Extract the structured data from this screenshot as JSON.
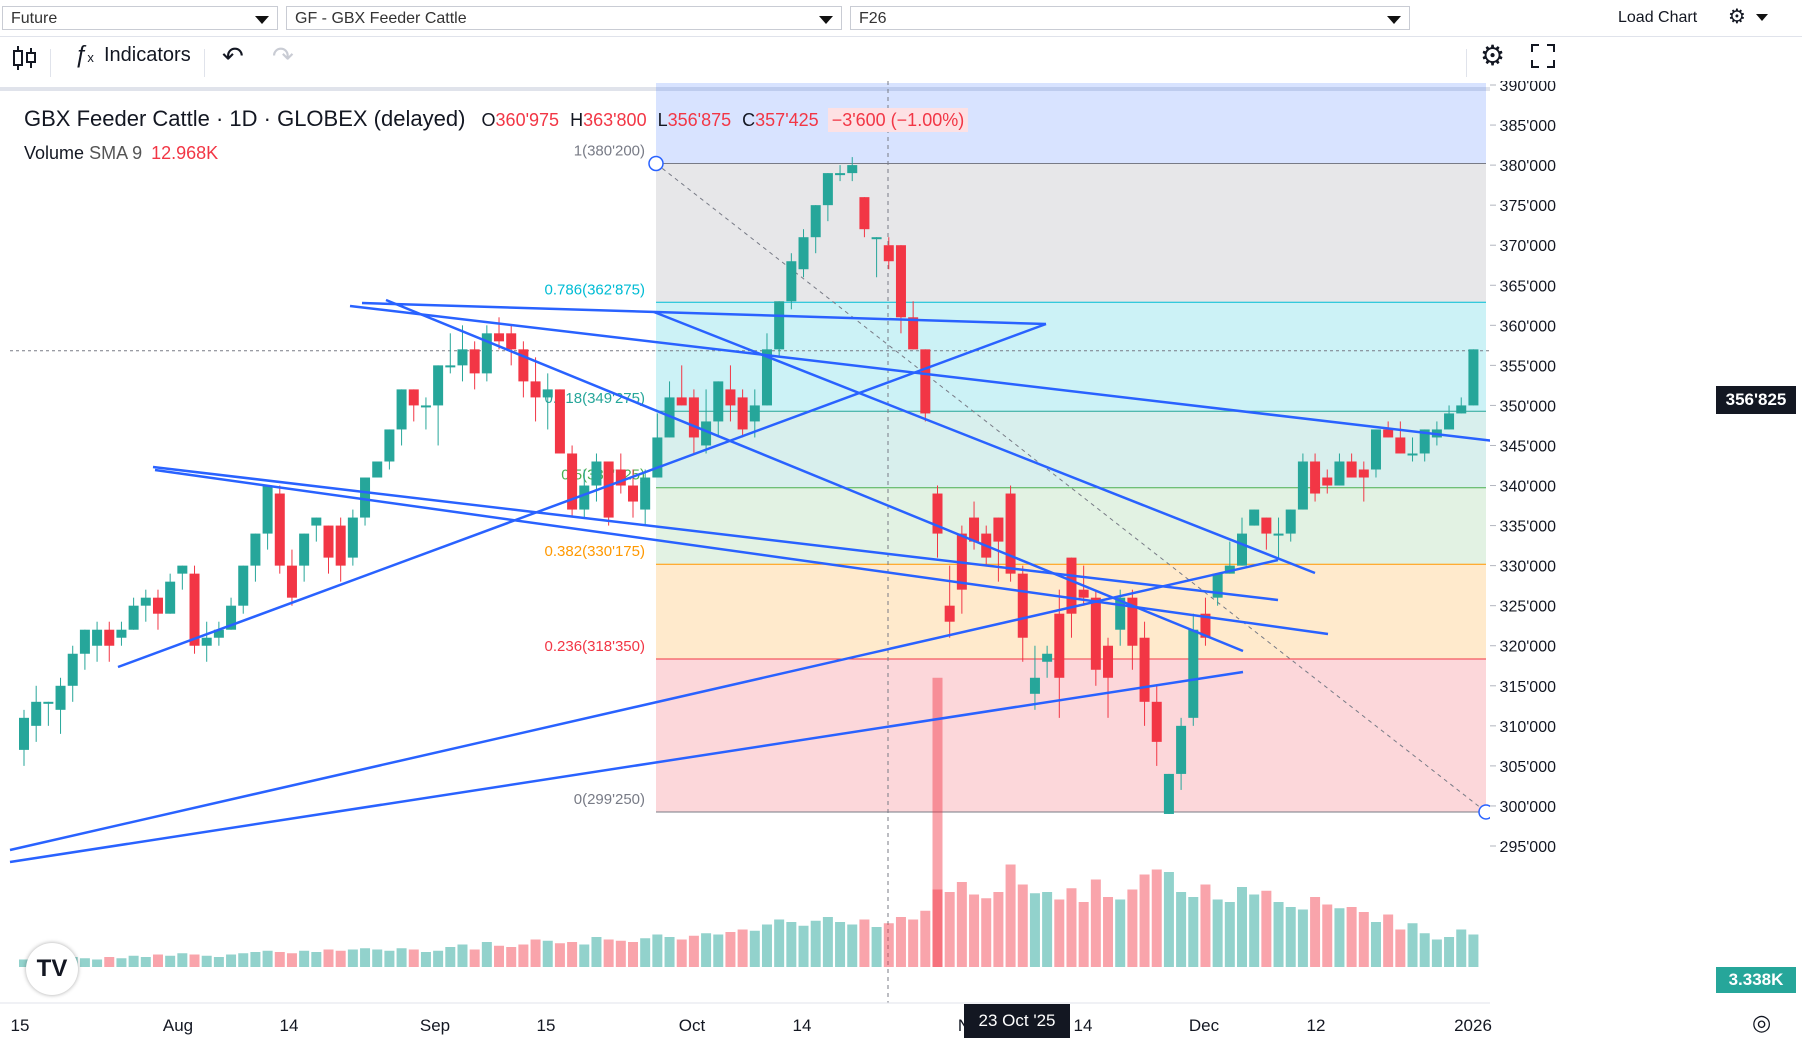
{
  "topbar": {
    "type_select": "Future",
    "symbol_select": "GF - GBX Feeder Cattle",
    "contract_select": "F26",
    "load_chart": "Load Chart"
  },
  "toolbar": {
    "indicators_label": "Indicators"
  },
  "legend": {
    "title": "GBX Feeder Cattle · 1D · GLOBEX (delayed)",
    "o_label": "O",
    "o": "360'975",
    "h_label": "H",
    "h": "363'800",
    "l_label": "L",
    "l": "356'875",
    "c_label": "C",
    "c": "357'425",
    "change": "−3'600 (−1.00%)"
  },
  "volume": {
    "label": "Volume",
    "sma": "SMA 9",
    "value": "12.968K"
  },
  "last_price": "356'825",
  "volume_tag": "3.338K",
  "crosshair_date": "23 Oct '25",
  "colors": {
    "up": "#26a69a",
    "down": "#f23645",
    "lines": "#2962ff"
  },
  "chart_data": {
    "type": "candlestick",
    "y_axis_ticks": [
      "390'000",
      "385'000",
      "380'000",
      "375'000",
      "370'000",
      "365'000",
      "360'000",
      "355'000",
      "350'000",
      "345'000",
      "340'000",
      "335'000",
      "330'000",
      "325'000",
      "320'000",
      "315'000",
      "310'000",
      "305'000",
      "300'000",
      "295'000"
    ],
    "x_axis_ticks": [
      "15",
      "Aug",
      "14",
      "Sep",
      "15",
      "Oct",
      "14",
      "Nov",
      "14",
      "Dec",
      "12",
      "2026"
    ],
    "fib_levels": [
      {
        "label": "1(380'200)",
        "price": 380.2,
        "color": "#787b86"
      },
      {
        "label": "0.786(362'875)",
        "price": 362.875,
        "color": "#00bcd4"
      },
      {
        "label": "0.618(349'275)",
        "price": 349.275,
        "color": "#26a69a"
      },
      {
        "label": "0.5(339'725)",
        "price": 339.725,
        "color": "#4caf50"
      },
      {
        "label": "0.382(330'175)",
        "price": 330.175,
        "color": "#ff9800"
      },
      {
        "label": "0.236(318'350)",
        "price": 318.35,
        "color": "#f23645"
      },
      {
        "label": "0(299'250)",
        "price": 299.25,
        "color": "#787b86"
      }
    ],
    "candles": [
      [
        307,
        311,
        305,
        312
      ],
      [
        310,
        313,
        308,
        315
      ],
      [
        313,
        313,
        310,
        313
      ],
      [
        312,
        315,
        309,
        316
      ],
      [
        315,
        319,
        313,
        320
      ],
      [
        319,
        322,
        317,
        322
      ],
      [
        320,
        322,
        318,
        323
      ],
      [
        322,
        320,
        318,
        323
      ],
      [
        321,
        322,
        320,
        323
      ],
      [
        322,
        325,
        322,
        326
      ],
      [
        325,
        326,
        323,
        327
      ],
      [
        326,
        324,
        322,
        327
      ],
      [
        324,
        328,
        324,
        329
      ],
      [
        329,
        330,
        327,
        330
      ],
      [
        329,
        320,
        319,
        330
      ],
      [
        320,
        321,
        318,
        323
      ],
      [
        321,
        322,
        320,
        323
      ],
      [
        322,
        325,
        322,
        326
      ],
      [
        325,
        330,
        324,
        330
      ],
      [
        330,
        334,
        328,
        334
      ],
      [
        334,
        340,
        332,
        340
      ],
      [
        339,
        330,
        329,
        340
      ],
      [
        330,
        326,
        325,
        332
      ],
      [
        330,
        334,
        328,
        334
      ],
      [
        335,
        336,
        333,
        336
      ],
      [
        335,
        331,
        329,
        335
      ],
      [
        335,
        330,
        328,
        336
      ],
      [
        331,
        336,
        330,
        337
      ],
      [
        336,
        341,
        335,
        341
      ],
      [
        341,
        343,
        341,
        343
      ],
      [
        343,
        347,
        342,
        347
      ],
      [
        347,
        352,
        345,
        352
      ],
      [
        352,
        350,
        348,
        352
      ],
      [
        350,
        350,
        347,
        351
      ],
      [
        350,
        355,
        345,
        355
      ],
      [
        355,
        355,
        354,
        359
      ],
      [
        355,
        357,
        353,
        360
      ],
      [
        357,
        354,
        352,
        358
      ],
      [
        354,
        359,
        353,
        360
      ],
      [
        359,
        358,
        357,
        361
      ],
      [
        359,
        357,
        355,
        360
      ],
      [
        357,
        353,
        351,
        358
      ],
      [
        353,
        351,
        348,
        356
      ],
      [
        351,
        352,
        347,
        354
      ],
      [
        352,
        344,
        344,
        352
      ],
      [
        344,
        337,
        336,
        345
      ],
      [
        337,
        340,
        336,
        342
      ],
      [
        340,
        343,
        338,
        344
      ],
      [
        343,
        336,
        335,
        343
      ],
      [
        342,
        340,
        339,
        344
      ],
      [
        340,
        338,
        336,
        342
      ],
      [
        337,
        341,
        335,
        342
      ],
      [
        341,
        346,
        341,
        349
      ],
      [
        346,
        351,
        346,
        353
      ],
      [
        351,
        350,
        350,
        355
      ],
      [
        351,
        346,
        344,
        352
      ],
      [
        345,
        348,
        344,
        352
      ],
      [
        348,
        353,
        346,
        353
      ],
      [
        352,
        350,
        348,
        355
      ],
      [
        351,
        347,
        346,
        352
      ],
      [
        348,
        350,
        346,
        352
      ],
      [
        350,
        357,
        350,
        359
      ],
      [
        357,
        363,
        356,
        363
      ],
      [
        363,
        368,
        362,
        369
      ],
      [
        367,
        371,
        366,
        372
      ],
      [
        371,
        375,
        369,
        375
      ],
      [
        375,
        379,
        373,
        379
      ],
      [
        379,
        379,
        378,
        380
      ],
      [
        379,
        380,
        378,
        381
      ],
      [
        376,
        372,
        371,
        376
      ],
      [
        371,
        371,
        366,
        371
      ],
      [
        370,
        368,
        367,
        371
      ],
      [
        370,
        361,
        359,
        370
      ],
      [
        361,
        357,
        357,
        363
      ],
      [
        357,
        349,
        348,
        357
      ],
      [
        339,
        334,
        331,
        340
      ],
      [
        325,
        323,
        321,
        330
      ],
      [
        334,
        327,
        324,
        335
      ],
      [
        336,
        333,
        332,
        338
      ],
      [
        334,
        331,
        330,
        335
      ],
      [
        336,
        333,
        328,
        336
      ],
      [
        339,
        329,
        328,
        340
      ],
      [
        329,
        321,
        318,
        330
      ],
      [
        314,
        316,
        312,
        320
      ],
      [
        318,
        319,
        316,
        320
      ],
      [
        324,
        316,
        311,
        327
      ],
      [
        331,
        324,
        321,
        331
      ],
      [
        327,
        326,
        325,
        330
      ],
      [
        326,
        317,
        315,
        327
      ],
      [
        320,
        316,
        311,
        321
      ],
      [
        322,
        326,
        320,
        327
      ],
      [
        326,
        320,
        317,
        327
      ],
      [
        321,
        313,
        310,
        323
      ],
      [
        313,
        308,
        305,
        315
      ],
      [
        299,
        304,
        299,
        304
      ],
      [
        304,
        310,
        302,
        311
      ],
      [
        311,
        322,
        310,
        324
      ],
      [
        324,
        321,
        320,
        326
      ],
      [
        326,
        329,
        325,
        329
      ],
      [
        329,
        330,
        329,
        333
      ],
      [
        330,
        334,
        330,
        336
      ],
      [
        335,
        337,
        335,
        337
      ],
      [
        336,
        334,
        332,
        336
      ],
      [
        334,
        334,
        331,
        336
      ],
      [
        334,
        337,
        333,
        337
      ],
      [
        337,
        343,
        337,
        344
      ],
      [
        343,
        339,
        338,
        344
      ],
      [
        341,
        340,
        339,
        342
      ],
      [
        340,
        343,
        340,
        344
      ],
      [
        343,
        341,
        341,
        344
      ],
      [
        342,
        341,
        338,
        343
      ],
      [
        342,
        347,
        341,
        347
      ],
      [
        347,
        346,
        346,
        348
      ],
      [
        346,
        344,
        344,
        348
      ],
      [
        344,
        344,
        343,
        346
      ],
      [
        344,
        347,
        343,
        347
      ],
      [
        346,
        347,
        345,
        348
      ],
      [
        347,
        349,
        347,
        350
      ],
      [
        349,
        350,
        349,
        351
      ],
      [
        350,
        357,
        350,
        357
      ]
    ]
  }
}
